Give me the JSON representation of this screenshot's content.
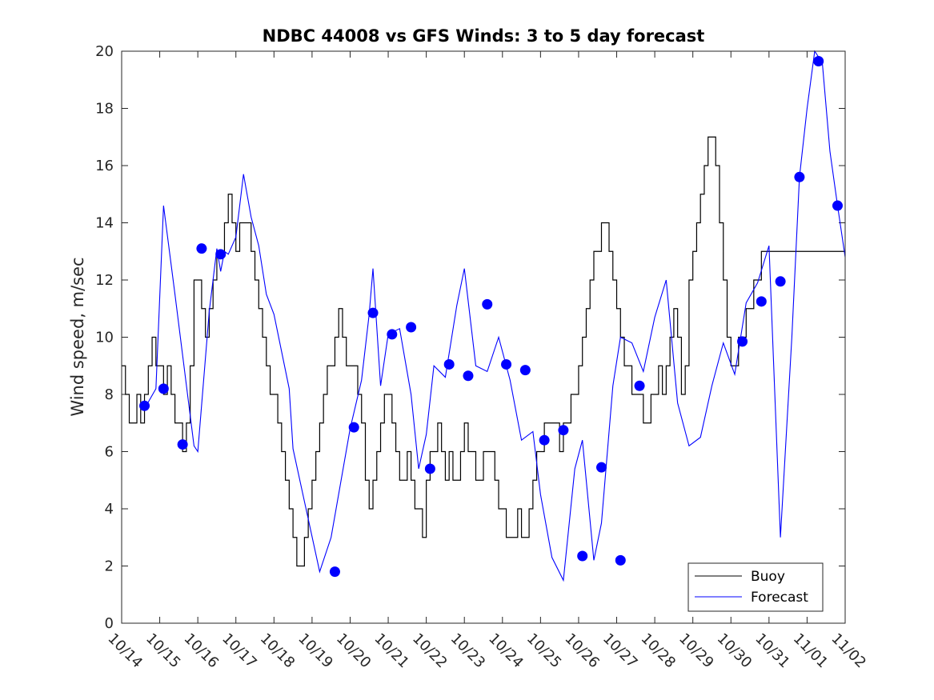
{
  "chart_data": {
    "type": "line",
    "title": "NDBC 44008 vs GFS Winds: 3 to 5 day forecast",
    "xlabel": "",
    "ylabel": "Wind speed, m/sec",
    "xlim": [
      0,
      19
    ],
    "ylim": [
      0,
      20
    ],
    "x_ticks": [
      "10/14",
      "10/15",
      "10/16",
      "10/17",
      "10/18",
      "10/19",
      "10/20",
      "10/21",
      "10/22",
      "10/23",
      "10/24",
      "10/25",
      "10/26",
      "10/27",
      "10/28",
      "10/29",
      "10/30",
      "10/31",
      "11/01",
      "11/02"
    ],
    "y_ticks": [
      0,
      2,
      4,
      6,
      8,
      10,
      12,
      14,
      16,
      18,
      20
    ],
    "legend": {
      "position": "bottom-right",
      "entries": [
        "Buoy",
        "Forecast"
      ]
    },
    "colors": {
      "buoy": "#000000",
      "forecast": "#0000ff"
    },
    "series": [
      {
        "name": "Buoy",
        "style": "step-line",
        "x": [
          0,
          0.1,
          0.2,
          0.3,
          0.4,
          0.5,
          0.6,
          0.7,
          0.8,
          0.9,
          1.0,
          1.1,
          1.2,
          1.3,
          1.4,
          1.5,
          1.6,
          1.7,
          1.8,
          1.9,
          2.0,
          2.1,
          2.2,
          2.3,
          2.4,
          2.5,
          2.6,
          2.7,
          2.8,
          2.9,
          3.0,
          3.1,
          3.2,
          3.3,
          3.4,
          3.5,
          3.6,
          3.7,
          3.8,
          3.9,
          4.0,
          4.1,
          4.2,
          4.3,
          4.4,
          4.5,
          4.6,
          4.7,
          4.8,
          4.9,
          5.0,
          5.1,
          5.2,
          5.3,
          5.4,
          5.5,
          5.6,
          5.7,
          5.8,
          5.9,
          6.0,
          6.1,
          6.2,
          6.3,
          6.4,
          6.5,
          6.6,
          6.7,
          6.8,
          6.9,
          7.0,
          7.1,
          7.2,
          7.3,
          7.4,
          7.5,
          7.6,
          7.7,
          7.8,
          7.9,
          8.0,
          8.1,
          8.2,
          8.3,
          8.4,
          8.5,
          8.6,
          8.7,
          8.8,
          8.9,
          9.0,
          9.1,
          9.2,
          9.3,
          9.4,
          9.5,
          9.6,
          9.7,
          9.8,
          9.9,
          10.0,
          10.1,
          10.2,
          10.3,
          10.4,
          10.5,
          10.6,
          10.7,
          10.8,
          10.9,
          11.0,
          11.1,
          11.2,
          11.3,
          11.4,
          11.5,
          11.6,
          11.7,
          11.8,
          11.9,
          12.0,
          12.1,
          12.2,
          12.3,
          12.4,
          12.5,
          12.6,
          12.7,
          12.8,
          12.9,
          13.0,
          13.1,
          13.2,
          13.3,
          13.4,
          13.5,
          13.6,
          13.7,
          13.8,
          13.9,
          14.0,
          14.1,
          14.2,
          14.3,
          14.4,
          14.5,
          14.6,
          14.7,
          14.8,
          14.9,
          15.0,
          15.1,
          15.2,
          15.3,
          15.4,
          15.5,
          15.6,
          15.7,
          15.8,
          15.9,
          16.0,
          16.1,
          16.2,
          16.3,
          16.4,
          16.5,
          16.6,
          16.7,
          16.8,
          16.9,
          17.0,
          17.1,
          17.2,
          17.3,
          17.4,
          17.5,
          17.6,
          17.7,
          17.8,
          17.9,
          18.0,
          18.1,
          18.2,
          18.3,
          18.4,
          18.5,
          18.6,
          18.7,
          18.8,
          18.9,
          19.0
        ],
        "values": [
          9,
          8,
          7,
          7,
          8,
          7,
          8,
          9,
          10,
          9,
          9,
          8,
          9,
          8,
          7,
          7,
          6,
          7,
          9,
          12,
          12,
          11,
          10,
          11,
          12,
          13,
          13,
          14,
          15,
          14,
          13,
          14,
          14,
          14,
          13,
          12,
          11,
          10,
          9,
          8,
          8,
          7,
          6,
          5,
          4,
          3,
          2,
          2,
          3,
          4,
          5,
          6,
          7,
          8,
          9,
          9,
          10,
          11,
          10,
          9,
          9,
          9,
          8,
          7,
          5,
          4,
          5,
          6,
          7,
          8,
          8,
          7,
          6,
          5,
          5,
          6,
          5,
          4,
          4,
          3,
          5,
          6,
          6,
          7,
          6,
          5,
          6,
          5,
          5,
          6,
          7,
          6,
          6,
          5,
          5,
          6,
          6,
          6,
          5,
          4,
          4,
          3,
          3,
          3,
          4,
          3,
          3,
          4,
          5,
          6,
          6,
          7,
          7,
          7,
          7,
          6,
          7,
          7,
          8,
          8,
          9,
          10,
          11,
          12,
          13,
          13,
          14,
          14,
          13,
          12,
          11,
          10,
          9,
          9,
          8,
          8,
          8,
          7,
          7,
          8,
          8,
          9,
          8,
          9,
          10,
          11,
          10,
          8,
          9,
          12,
          13,
          14,
          15,
          16,
          17,
          17,
          16,
          14,
          12,
          10,
          9,
          9,
          10,
          10,
          11,
          11,
          12,
          12,
          13,
          13,
          13,
          13,
          13,
          13,
          13,
          13,
          13,
          13,
          13,
          13,
          13,
          13,
          13,
          13,
          13,
          13,
          13,
          13,
          13,
          13,
          13
        ]
      },
      {
        "name": "Forecast",
        "x": [
          0.6,
          0.9,
          1.1,
          1.4,
          1.9,
          2.0,
          2.3,
          2.5,
          2.6,
          2.7,
          2.8,
          3.0,
          3.2,
          3.4,
          3.6,
          3.8,
          4.0,
          4.2,
          4.4,
          4.5,
          5.2,
          5.5,
          6.0,
          6.3,
          6.5,
          6.6,
          6.8,
          7.0,
          7.3,
          7.6,
          7.8,
          8.0,
          8.2,
          8.5,
          8.8,
          9.0,
          9.3,
          9.6,
          9.9,
          10.2,
          10.5,
          10.8,
          11.0,
          11.3,
          11.6,
          11.9,
          12.1,
          12.4,
          12.6,
          12.9,
          13.1,
          13.4,
          13.7,
          14.0,
          14.3,
          14.6,
          14.9,
          15.2,
          15.5,
          15.8,
          16.1,
          16.4,
          16.7,
          17.0,
          17.3,
          17.6,
          17.8,
          18.0,
          18.2,
          18.4,
          18.6,
          18.8,
          19.0
        ],
        "values": [
          7.5,
          8.2,
          14.6,
          11.5,
          6.2,
          6.0,
          10.9,
          13.1,
          12.3,
          13.0,
          12.9,
          13.5,
          15.7,
          14.2,
          13.2,
          11.5,
          10.8,
          9.5,
          8.2,
          6.1,
          1.8,
          3.0,
          6.8,
          8.5,
          10.8,
          12.4,
          8.3,
          10.1,
          10.3,
          8.0,
          5.4,
          6.6,
          9.0,
          8.6,
          11.1,
          12.4,
          9.0,
          8.8,
          10.0,
          8.5,
          6.4,
          6.7,
          4.5,
          2.3,
          1.5,
          5.4,
          6.4,
          2.2,
          3.5,
          8.3,
          10.0,
          9.8,
          8.8,
          10.7,
          12.0,
          7.7,
          6.2,
          6.5,
          8.3,
          9.8,
          8.7,
          11.2,
          11.9,
          13.2,
          3.0,
          10.0,
          15.6,
          18.0,
          20.0,
          19.6,
          16.5,
          14.6,
          12.8
        ]
      },
      {
        "name": "Forecast markers",
        "style": "markers",
        "x": [
          0.6,
          1.1,
          1.6,
          2.1,
          2.6,
          5.6,
          6.1,
          6.6,
          7.1,
          7.6,
          8.1,
          8.6,
          9.1,
          9.6,
          10.1,
          10.6,
          11.1,
          11.6,
          12.1,
          12.6,
          13.1,
          13.6,
          16.3,
          16.8,
          17.3,
          17.8,
          18.3,
          18.8
        ],
        "values": [
          7.6,
          8.2,
          6.25,
          13.1,
          12.9,
          1.8,
          6.85,
          10.85,
          10.1,
          10.35,
          5.4,
          9.05,
          8.65,
          11.15,
          9.05,
          8.85,
          6.4,
          6.75,
          2.35,
          5.45,
          2.2,
          8.3,
          9.85,
          11.25,
          11.95,
          15.6,
          19.65,
          14.6
        ]
      }
    ]
  }
}
